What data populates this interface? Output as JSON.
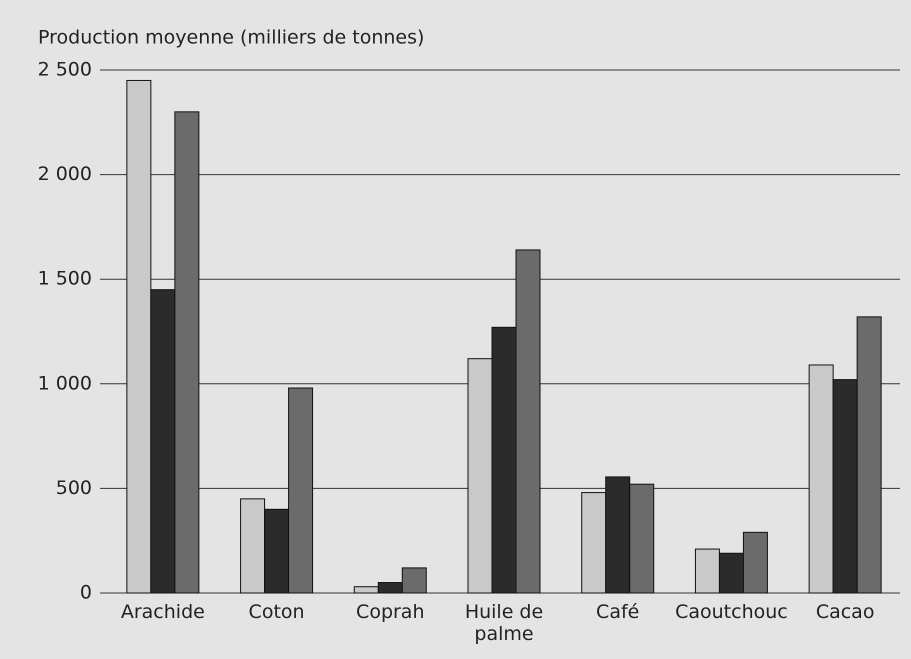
{
  "chart_data": {
    "type": "bar",
    "y_label": "Production moyenne (milliers de tonnes)",
    "categories": [
      "Arachide",
      "Coton",
      "Coprah",
      "Huile de palme",
      "Café",
      "Caoutchouc",
      "Cacao"
    ],
    "series": [
      {
        "color": "#c9c9c9",
        "values": [
          2450,
          450,
          30,
          1120,
          480,
          210,
          1090
        ]
      },
      {
        "color": "#2b2b2b",
        "values": [
          1450,
          400,
          50,
          1270,
          555,
          190,
          1020
        ]
      },
      {
        "color": "#6b6b6b",
        "values": [
          2300,
          980,
          120,
          1640,
          520,
          290,
          1320
        ]
      }
    ],
    "ylim": [
      0,
      2500
    ],
    "yticks": [
      0,
      500,
      {
        "value": 1000,
        "label": "1 000"
      },
      {
        "value": 1500,
        "label": "1 500"
      },
      {
        "value": 2000,
        "label": "2 000"
      },
      {
        "value": 2500,
        "label": "2 500"
      }
    ],
    "grid": true
  }
}
